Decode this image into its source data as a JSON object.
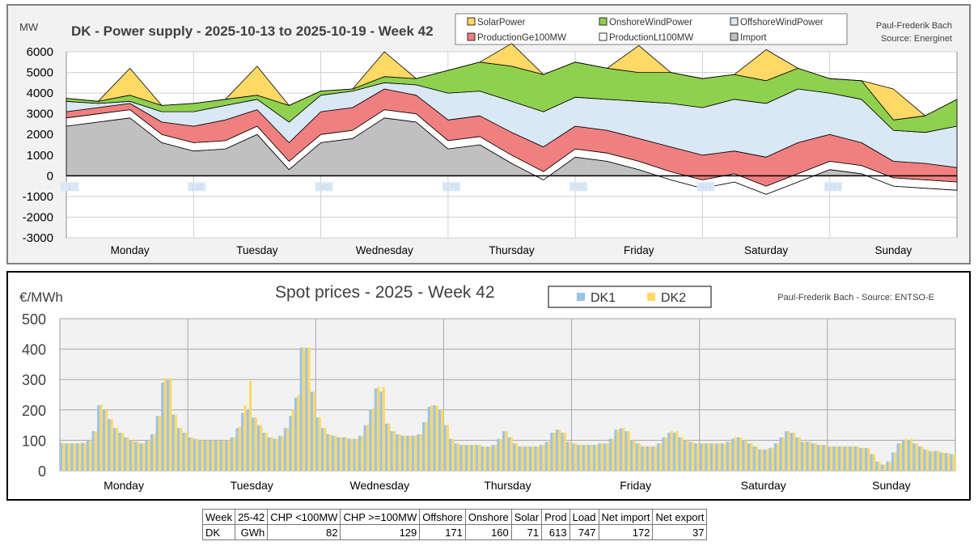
{
  "chart_data": [
    {
      "type": "area",
      "title": "DK - Power supply - 2025-10-13 to 2025-10-19 - Week 42",
      "ylabel": "MW",
      "author": "Paul-Frederik Bach",
      "source": "Source: Energinet",
      "ylim": [
        -3000,
        6000
      ],
      "yticks": [
        6000,
        5000,
        4000,
        3000,
        2000,
        1000,
        0,
        -1000,
        -2000,
        -3000
      ],
      "days": [
        "Monday",
        "Tuesday",
        "Wednesday",
        "Thursday",
        "Friday",
        "Saturday",
        "Sunday"
      ],
      "hour_markers": [
        "1",
        "193",
        "385",
        "577",
        "769",
        "961",
        "1153"
      ],
      "grid": true,
      "legend_position": "top",
      "colors": {
        "import": "#c0c0c0",
        "lt100": "#ffffff",
        "ge100": "#f08080",
        "offshore": "#dae7f5",
        "onshore": "#8fd14f",
        "solar": "#ffd966"
      },
      "x_hours": [
        0,
        6,
        12,
        18,
        24,
        30,
        36,
        42,
        48,
        54,
        60,
        66,
        72,
        78,
        84,
        90,
        96,
        102,
        108,
        114,
        120,
        126,
        132,
        138,
        144,
        150,
        156,
        162,
        168
      ],
      "series": [
        {
          "name": "Import",
          "key": "import",
          "values": [
            2400,
            2600,
            2800,
            1600,
            1200,
            1300,
            2000,
            300,
            1600,
            1800,
            2800,
            2600,
            1300,
            1500,
            600,
            -200,
            900,
            700,
            300,
            -200,
            -600,
            -300,
            -900,
            -300,
            300,
            100,
            -500,
            -600,
            -700
          ]
        },
        {
          "name": "ProductionLt100MW",
          "key": "lt100",
          "values": [
            400,
            400,
            400,
            400,
            400,
            400,
            400,
            400,
            400,
            400,
            400,
            400,
            400,
            400,
            400,
            400,
            400,
            400,
            400,
            400,
            400,
            400,
            400,
            400,
            400,
            400,
            400,
            400,
            400
          ]
        },
        {
          "name": "ProductionGe100MW",
          "key": "ge100",
          "values": [
            300,
            300,
            300,
            600,
            800,
            1000,
            800,
            900,
            1100,
            1100,
            1000,
            900,
            1000,
            1000,
            1100,
            1200,
            1100,
            1100,
            1100,
            1200,
            1200,
            1100,
            1400,
            1500,
            1300,
            1100,
            800,
            800,
            700
          ]
        },
        {
          "name": "OffshoreWindPower",
          "key": "offshore",
          "values": [
            500,
            200,
            100,
            500,
            700,
            700,
            500,
            1000,
            800,
            800,
            300,
            500,
            1300,
            1200,
            1500,
            1700,
            1400,
            1500,
            1800,
            2100,
            2300,
            2500,
            2600,
            2600,
            2000,
            2100,
            1500,
            1500,
            2000
          ]
        },
        {
          "name": "OnshoreWindPower",
          "key": "onshore",
          "values": [
            150,
            100,
            300,
            300,
            400,
            300,
            200,
            800,
            200,
            100,
            300,
            300,
            1100,
            1400,
            1700,
            1800,
            1700,
            1500,
            1400,
            1500,
            1400,
            1200,
            1100,
            1000,
            700,
            900,
            500,
            800,
            1300
          ]
        },
        {
          "name": "SolarPower",
          "key": "solar",
          "values": [
            0,
            0,
            1300,
            0,
            0,
            0,
            1400,
            0,
            0,
            0,
            1200,
            0,
            0,
            0,
            1100,
            0,
            0,
            0,
            1300,
            0,
            0,
            0,
            1500,
            0,
            0,
            0,
            1500,
            0,
            0
          ]
        }
      ]
    },
    {
      "type": "bar",
      "title": "Spot prices - 2025 - Week 42",
      "ylabel": "€/MWh",
      "source": "Paul-Frederik Bach - Source: ENTSO-E",
      "ylim": [
        0,
        500
      ],
      "yticks": [
        500,
        400,
        300,
        200,
        100,
        0
      ],
      "days": [
        "Monday",
        "Tuesday",
        "Wednesday",
        "Thursday",
        "Friday",
        "Saturday",
        "Sunday"
      ],
      "grid": true,
      "legend_position": "top",
      "colors": {
        "DK1": "#9dc3e6",
        "DK2": "#ffd966"
      },
      "hours_per_bar": 1,
      "series": [
        {
          "name": "DK1",
          "values": [
            92,
            90,
            90,
            90,
            92,
            100,
            130,
            215,
            200,
            170,
            140,
            125,
            110,
            100,
            95,
            90,
            100,
            120,
            180,
            290,
            300,
            185,
            140,
            125,
            110,
            105,
            100,
            100,
            100,
            100,
            100,
            100,
            110,
            140,
            190,
            200,
            175,
            150,
            125,
            110,
            105,
            115,
            140,
            180,
            240,
            405,
            405,
            260,
            175,
            140,
            120,
            115,
            110,
            110,
            105,
            105,
            115,
            150,
            200,
            270,
            260,
            155,
            130,
            120,
            115,
            115,
            115,
            120,
            160,
            210,
            215,
            200,
            150,
            105,
            90,
            85,
            85,
            85,
            85,
            80,
            80,
            85,
            105,
            130,
            110,
            90,
            80,
            80,
            80,
            80,
            85,
            95,
            125,
            135,
            125,
            95,
            90,
            85,
            85,
            85,
            85,
            90,
            90,
            105,
            135,
            140,
            130,
            100,
            90,
            80,
            80,
            80,
            90,
            110,
            125,
            125,
            110,
            100,
            95,
            90,
            90,
            90,
            90,
            90,
            90,
            95,
            105,
            110,
            100,
            90,
            80,
            70,
            70,
            75,
            90,
            110,
            130,
            125,
            110,
            95,
            95,
            90,
            85,
            85,
            80,
            80,
            80,
            80,
            80,
            80,
            75,
            75,
            55,
            30,
            20,
            30,
            60,
            90,
            100,
            100,
            90,
            80,
            70,
            65,
            65,
            60,
            58,
            55
          ]
        },
        {
          "name": "DK2",
          "values": [
            90,
            90,
            90,
            90,
            92,
            100,
            130,
            218,
            200,
            170,
            140,
            125,
            110,
            100,
            95,
            90,
            100,
            120,
            180,
            305,
            305,
            185,
            140,
            125,
            110,
            105,
            100,
            100,
            100,
            100,
            100,
            100,
            110,
            145,
            215,
            295,
            175,
            150,
            125,
            110,
            105,
            115,
            140,
            200,
            248,
            405,
            405,
            260,
            175,
            140,
            120,
            115,
            110,
            110,
            105,
            105,
            115,
            150,
            205,
            275,
            275,
            155,
            130,
            120,
            115,
            115,
            115,
            120,
            160,
            215,
            215,
            200,
            150,
            105,
            90,
            85,
            85,
            85,
            85,
            80,
            80,
            85,
            105,
            130,
            110,
            90,
            80,
            80,
            80,
            80,
            85,
            95,
            125,
            135,
            125,
            95,
            90,
            85,
            85,
            85,
            85,
            90,
            90,
            105,
            135,
            140,
            130,
            100,
            90,
            80,
            80,
            80,
            90,
            110,
            130,
            130,
            110,
            100,
            95,
            90,
            90,
            90,
            90,
            90,
            90,
            95,
            110,
            110,
            100,
            90,
            80,
            70,
            70,
            75,
            90,
            110,
            130,
            125,
            110,
            95,
            95,
            90,
            85,
            85,
            80,
            80,
            80,
            80,
            80,
            80,
            75,
            75,
            55,
            30,
            20,
            30,
            60,
            90,
            105,
            105,
            90,
            80,
            70,
            65,
            65,
            60,
            58,
            55
          ]
        }
      ]
    }
  ],
  "summary_table": {
    "header": [
      "Week",
      "25-42",
      "CHP <100MW",
      "CHP >=100MW",
      "Offshore",
      "Onshore",
      "Solar",
      "Prod",
      "Load",
      "Net import",
      "Net export"
    ],
    "row": [
      "DK",
      "GWh",
      "82",
      "129",
      "171",
      "160",
      "71",
      "613",
      "747",
      "172",
      "37"
    ]
  }
}
